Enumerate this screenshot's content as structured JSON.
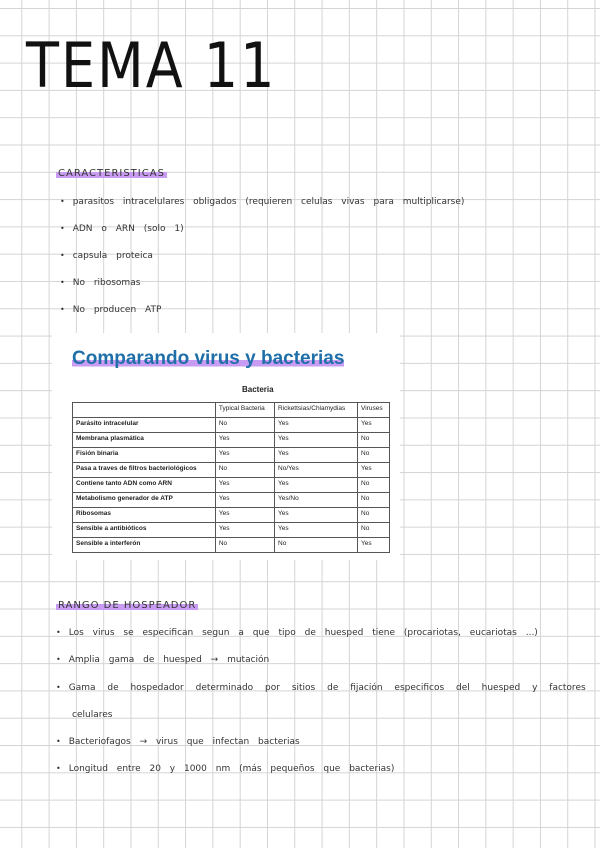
{
  "title": "TEMA 11",
  "section1": {
    "heading": "CARACTERISTICAS",
    "items": [
      "parasitos intracelulares obligados (requieren celulas vivas para multiplicarse)",
      "ADN o ARN (solo 1)",
      "capsula proteica",
      "No ribosomas",
      "No producen ATP"
    ]
  },
  "table": {
    "title": "Comparando virus y bacterias",
    "group_label": "Bacteria",
    "columns": [
      "",
      "Typical Bacteria",
      "Rickettsias/Chlamydias",
      "Viruses"
    ],
    "rows": [
      [
        "Parásito intracelular",
        "No",
        "Yes",
        "Yes"
      ],
      [
        "Membrana plasmática",
        "Yes",
        "Yes",
        "No"
      ],
      [
        "Fisión binaria",
        "Yes",
        "Yes",
        "No"
      ],
      [
        "Pasa a traves de filtros bacteriológicos",
        "No",
        "No/Yes",
        "Yes"
      ],
      [
        "Contiene tanto ADN como ARN",
        "Yes",
        "Yes",
        "No"
      ],
      [
        "Metabolismo generador de ATP",
        "Yes",
        "Yes/No",
        "No"
      ],
      [
        "Ribosomas",
        "Yes",
        "Yes",
        "No"
      ],
      [
        "Sensible a antibióticos",
        "Yes",
        "Yes",
        "No"
      ],
      [
        "Sensible a interferón",
        "No",
        "No",
        "Yes"
      ]
    ]
  },
  "section2": {
    "heading": "RANGO DE HOSPEADOR",
    "items": [
      "Los virus se especifican segun a que tipo de huesped tiene (procariotas, eucariotas ...)",
      "Amplia gama de huesped → mutación",
      "Gama de hospedador determinado por sitios de fijación especificos del huesped y factores",
      "Bacteriofagos → virus que infectan bacterias",
      "Longitud entre 20 y 1000 nm (más pequeños que bacterias)"
    ],
    "continuation": "celulares"
  },
  "colors": {
    "highlight": "#c79cf2",
    "table_title": "#1f6fa8"
  }
}
